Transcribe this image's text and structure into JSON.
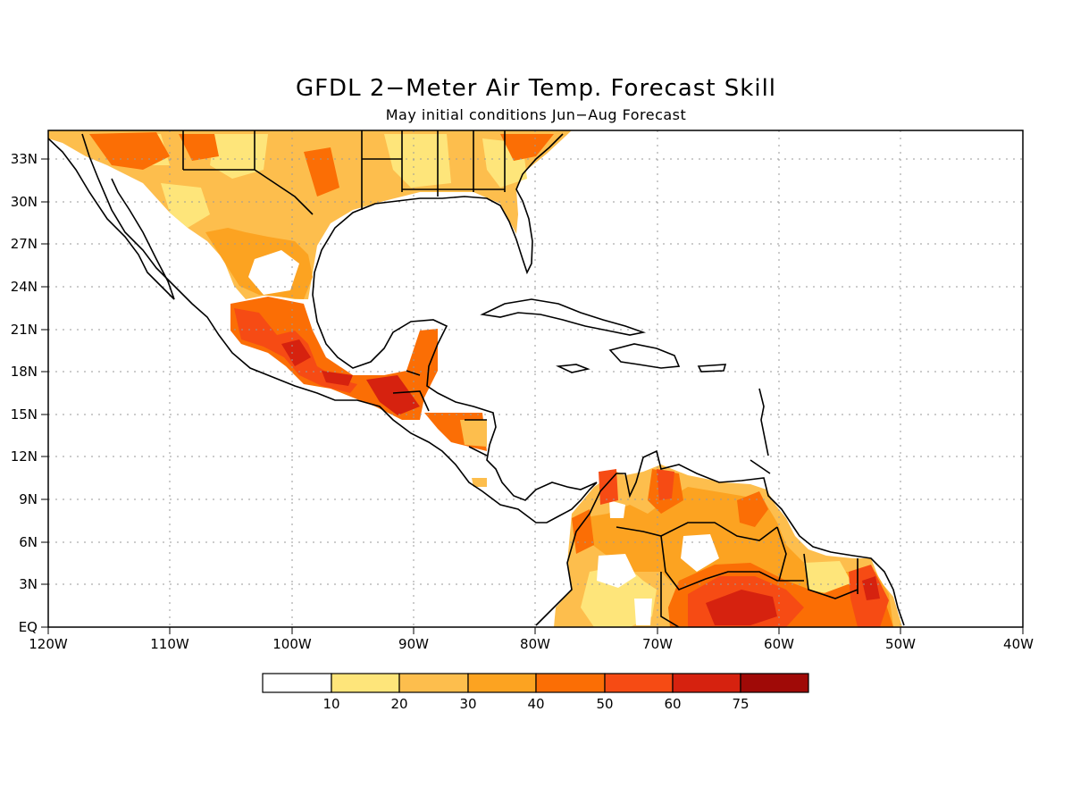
{
  "map": {
    "title": "GFDL 2−Meter Air Temp. Forecast Skill",
    "subtitle": "May initial conditions  Jun−Aug Forecast",
    "lat_labels": [
      "33N",
      "30N",
      "27N",
      "24N",
      "21N",
      "18N",
      "15N",
      "12N",
      "9N",
      "6N",
      "3N",
      "EQ"
    ],
    "lon_labels": [
      "120W",
      "110W",
      "100W",
      "90W",
      "80W",
      "70W",
      "60W",
      "50W",
      "40W"
    ],
    "colors": {
      "c10": "#fee57a",
      "c20": "#fdbe4d",
      "c30": "#fca321",
      "c40": "#fb6e05",
      "c50": "#f64b14",
      "c60": "#d6220f",
      "c75": "#a00a07",
      "coast": "#000000"
    }
  },
  "colorbar": {
    "labels": [
      "10",
      "20",
      "30",
      "40",
      "50",
      "60",
      "75"
    ],
    "colors": [
      "#ffffff",
      "#fee57a",
      "#fdbe4d",
      "#fca321",
      "#fb6e05",
      "#f64b14",
      "#d6220f",
      "#a00a07"
    ]
  }
}
